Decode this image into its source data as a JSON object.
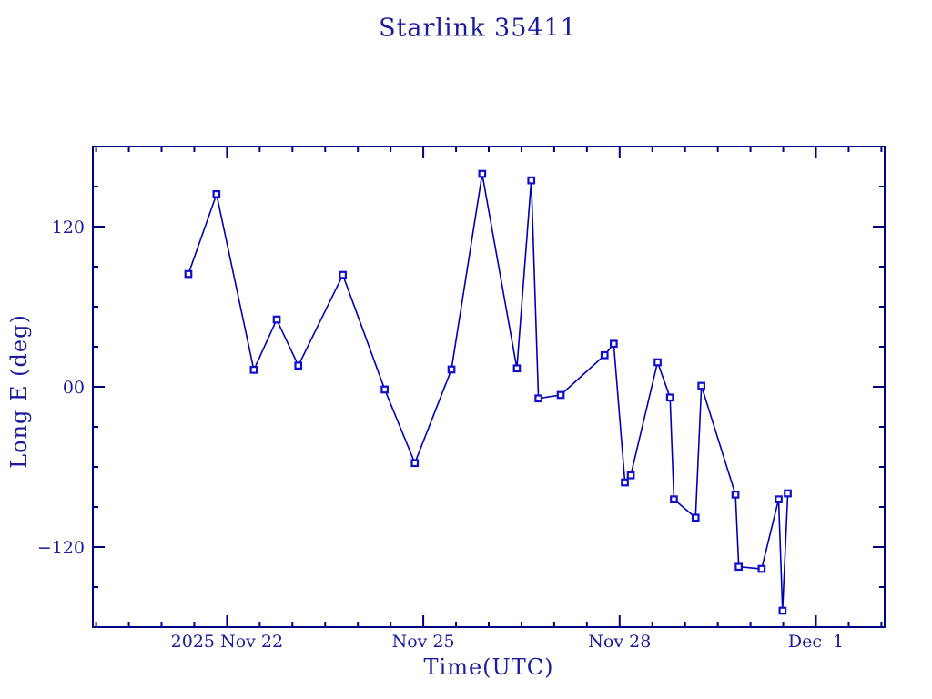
{
  "window": {
    "background": "#ffffff"
  },
  "colors": {
    "text": "#1a1a9c",
    "axis": "#000085",
    "line": "#0000b2",
    "marker": "#0f0fcc",
    "marker_fill": "#ffffff"
  },
  "chart_data": {
    "type": "line",
    "title": "Starlink 35411",
    "xlabel": "Time(UTC)",
    "ylabel": "Long E (deg)",
    "grid": "off",
    "legend": "none",
    "marker": "open-square",
    "x_axis": {
      "unit": "day of November 2025 (Dec 1 = 31)",
      "range": [
        19.95,
        32.05
      ],
      "major_ticks": [
        {
          "value": 22,
          "label": "2025 Nov 22"
        },
        {
          "value": 25,
          "label": "Nov 25"
        },
        {
          "value": 28,
          "label": "Nov 28"
        },
        {
          "value": 31,
          "label": "Dec  1"
        }
      ],
      "minor_tick_start": 20,
      "minor_tick_end": 32,
      "minor_tick_step": 0.5
    },
    "y_axis": {
      "range": [
        -180,
        180
      ],
      "major_ticks": [
        {
          "value": 120,
          "label": "120"
        },
        {
          "value": 0,
          "label": "00"
        },
        {
          "value": -120,
          "label": "-120"
        }
      ],
      "minor_tick_step": 30
    },
    "series": [
      {
        "name": "Long E (deg)",
        "points_day_deg": [
          [
            21.41,
            84.5
          ],
          [
            21.84,
            144.3
          ],
          [
            22.41,
            12.7
          ],
          [
            22.76,
            50.4
          ],
          [
            23.09,
            15.9
          ],
          [
            23.77,
            83.8
          ],
          [
            24.41,
            -2.0
          ],
          [
            24.87,
            -57.1
          ],
          [
            25.43,
            13.0
          ],
          [
            25.9,
            159.5
          ],
          [
            26.43,
            13.8
          ],
          [
            26.65,
            154.7
          ],
          [
            26.76,
            -8.7
          ],
          [
            27.1,
            -6.1
          ],
          [
            27.77,
            23.7
          ],
          [
            27.91,
            32.2
          ],
          [
            28.08,
            -71.6
          ],
          [
            28.17,
            -66.3
          ],
          [
            28.58,
            18.4
          ],
          [
            28.77,
            -8.0
          ],
          [
            28.83,
            -84.3
          ],
          [
            29.16,
            -98.0
          ],
          [
            29.25,
            0.7
          ],
          [
            29.77,
            -80.7
          ],
          [
            29.82,
            -134.8
          ],
          [
            30.17,
            -136.4
          ],
          [
            30.43,
            -84.3
          ],
          [
            30.49,
            -167.7
          ],
          [
            30.57,
            -79.8
          ]
        ]
      }
    ]
  }
}
